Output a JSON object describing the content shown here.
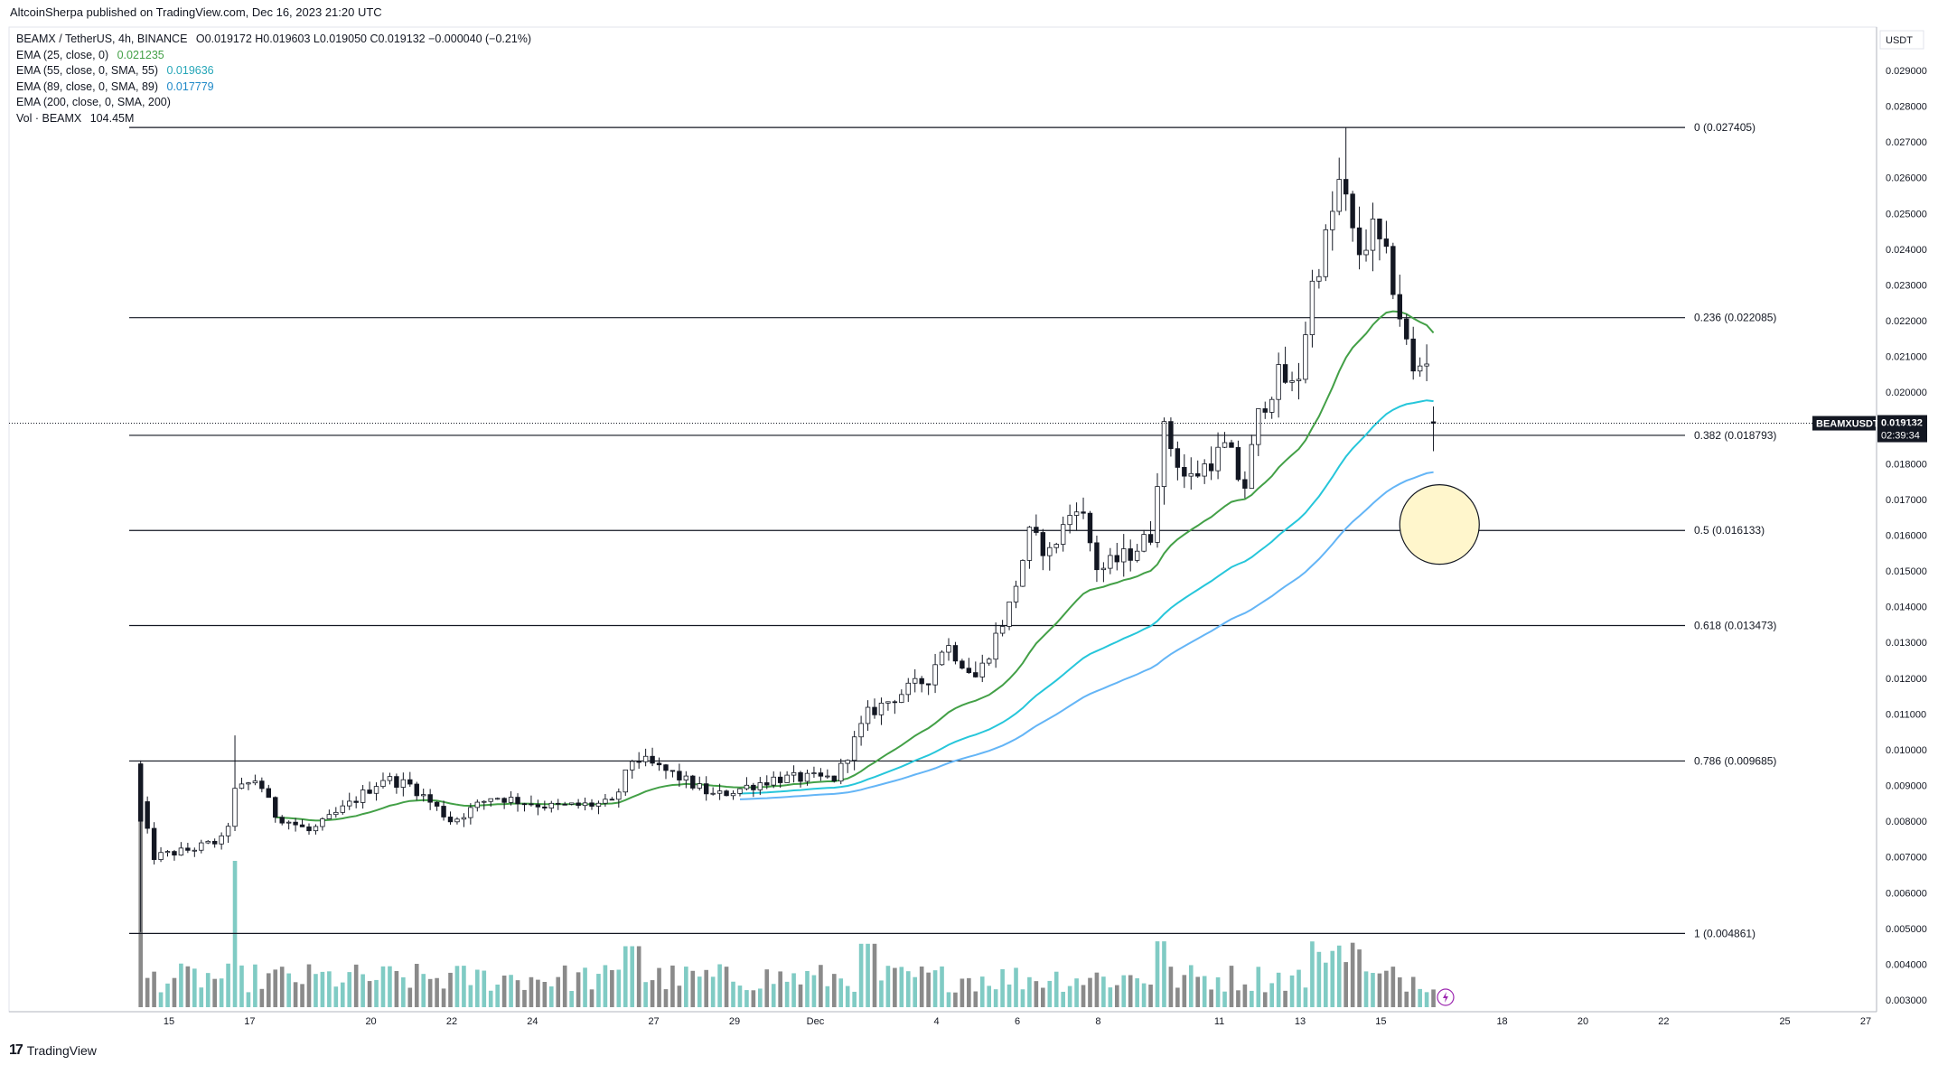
{
  "header": {
    "published_by": "AltcoinSherpa published on TradingView.com, Dec 16, 2023 21:20 UTC"
  },
  "legend": {
    "symbol_line": {
      "label": "BEAMX / TetherUS, 4h, BINANCE",
      "ohlc": "O0.019172  H0.019603  L0.019050  C0.019132  −0.000040 (−0.21%)"
    },
    "indicators": [
      {
        "label": "EMA (25, close, 0)",
        "value": "0.021235",
        "color": "#43a047"
      },
      {
        "label": "EMA (55, close, 0, SMA, 55)",
        "value": "0.019636",
        "color": "#26c6da"
      },
      {
        "label": "EMA (89, close, 0, SMA, 89)",
        "value": "0.017779",
        "color": "#29b6f6"
      },
      {
        "label": "EMA (200, close, 0, SMA, 200)",
        "value": "",
        "color": "#131722"
      },
      {
        "label": "Vol · BEAMX",
        "value": "104.45M",
        "color": "#131722"
      }
    ]
  },
  "footer": {
    "brand": "TradingView",
    "brand_mark": "17"
  },
  "currency": "USDT",
  "price_tag": {
    "symbol": "BEAMXUSDT",
    "price": "0.019132",
    "countdown": "02:39:34"
  },
  "colors": {
    "up_candle": "#ffffff",
    "down_candle": "#131722",
    "wick": "#131722",
    "vol_up": "#80cbc4",
    "vol_down": "#8a8a8a",
    "ema25": "#43a047",
    "ema55": "#26c6da",
    "ema89": "#64b5f6",
    "fib_line": "#131722",
    "circle_fill": "#fff6cc"
  },
  "chart_data": {
    "type": "candlestick",
    "title": "BEAMX / TetherUS, 4h, BINANCE",
    "ylim": [
      0.0027,
      0.0295
    ],
    "y_ticks": [
      "0.029000",
      "0.028000",
      "0.027000",
      "0.026000",
      "0.025000",
      "0.024000",
      "0.023000",
      "0.022000",
      "0.021000",
      "0.020000",
      "0.019000",
      "0.018000",
      "0.017000",
      "0.016000",
      "0.015000",
      "0.014000",
      "0.013000",
      "0.012000",
      "0.011000",
      "0.010000",
      "0.009000",
      "0.008000",
      "0.007000",
      "0.006000",
      "0.005000",
      "0.004000",
      "0.003000"
    ],
    "x_ticks": [
      {
        "label": "15",
        "day": 15
      },
      {
        "label": "17",
        "day": 17
      },
      {
        "label": "20",
        "day": 20
      },
      {
        "label": "22",
        "day": 22
      },
      {
        "label": "24",
        "day": 24
      },
      {
        "label": "27",
        "day": 27
      },
      {
        "label": "29",
        "day": 29
      },
      {
        "label": "Dec",
        "day": 31
      },
      {
        "label": "4",
        "day": 34
      },
      {
        "label": "6",
        "day": 36
      },
      {
        "label": "8",
        "day": 38
      },
      {
        "label": "11",
        "day": 41
      },
      {
        "label": "13",
        "day": 43
      },
      {
        "label": "15",
        "day": 45
      },
      {
        "label": "18",
        "day": 48
      },
      {
        "label": "20",
        "day": 50
      },
      {
        "label": "22",
        "day": 52
      },
      {
        "label": "25",
        "day": 55
      },
      {
        "label": "27",
        "day": 57
      }
    ],
    "fib_levels": [
      {
        "label": "0 (0.027405)",
        "value": 0.027405
      },
      {
        "label": "0.236 (0.022085)",
        "value": 0.022085
      },
      {
        "label": "0.382 (0.018793)",
        "value": 0.018793
      },
      {
        "label": "0.5 (0.016133)",
        "value": 0.016133
      },
      {
        "label": "0.618 (0.013473)",
        "value": 0.013473
      },
      {
        "label": "0.786 (0.009685)",
        "value": 0.009685
      },
      {
        "label": "1 (0.004861)",
        "value": 0.004861
      }
    ],
    "last_price": 0.019132,
    "target_zone": {
      "day": 46.45,
      "price": 0.0163
    },
    "price_keys": [
      {
        "day": 14.3,
        "price": 0.0085
      },
      {
        "day": 14.6,
        "price": 0.007
      },
      {
        "day": 15.5,
        "price": 0.0072
      },
      {
        "day": 16.4,
        "price": 0.0075
      },
      {
        "day": 16.6,
        "price": 0.0088
      },
      {
        "day": 17.2,
        "price": 0.0092
      },
      {
        "day": 17.6,
        "price": 0.0082
      },
      {
        "day": 18.5,
        "price": 0.0077
      },
      {
        "day": 19.5,
        "price": 0.0085
      },
      {
        "day": 20.3,
        "price": 0.0092
      },
      {
        "day": 21.0,
        "price": 0.009
      },
      {
        "day": 22.0,
        "price": 0.008
      },
      {
        "day": 23.0,
        "price": 0.0087
      },
      {
        "day": 24.5,
        "price": 0.0084
      },
      {
        "day": 26.0,
        "price": 0.0085
      },
      {
        "day": 26.5,
        "price": 0.0098
      },
      {
        "day": 27.5,
        "price": 0.0093
      },
      {
        "day": 28.5,
        "price": 0.0087
      },
      {
        "day": 30.0,
        "price": 0.0092
      },
      {
        "day": 31.5,
        "price": 0.0092
      },
      {
        "day": 32.3,
        "price": 0.011
      },
      {
        "day": 33.0,
        "price": 0.0115
      },
      {
        "day": 33.8,
        "price": 0.012
      },
      {
        "day": 34.2,
        "price": 0.013
      },
      {
        "day": 35.0,
        "price": 0.012
      },
      {
        "day": 35.8,
        "price": 0.014
      },
      {
        "day": 36.3,
        "price": 0.016
      },
      {
        "day": 36.8,
        "price": 0.0155
      },
      {
        "day": 37.5,
        "price": 0.017
      },
      {
        "day": 38.0,
        "price": 0.015
      },
      {
        "day": 38.8,
        "price": 0.0155
      },
      {
        "day": 39.3,
        "price": 0.016
      },
      {
        "day": 39.6,
        "price": 0.019
      },
      {
        "day": 40.2,
        "price": 0.0175
      },
      {
        "day": 41.2,
        "price": 0.0185
      },
      {
        "day": 41.6,
        "price": 0.0172
      },
      {
        "day": 42.0,
        "price": 0.0195
      },
      {
        "day": 42.5,
        "price": 0.0205
      },
      {
        "day": 42.9,
        "price": 0.02
      },
      {
        "day": 43.3,
        "price": 0.023
      },
      {
        "day": 43.7,
        "price": 0.0245
      },
      {
        "day": 44.0,
        "price": 0.026
      },
      {
        "day": 44.4,
        "price": 0.0238
      },
      {
        "day": 44.8,
        "price": 0.0245
      },
      {
        "day": 45.2,
        "price": 0.0235
      },
      {
        "day": 45.5,
        "price": 0.022
      },
      {
        "day": 45.8,
        "price": 0.0205
      },
      {
        "day": 46.1,
        "price": 0.021
      },
      {
        "day": 46.3,
        "price": 0.0208
      },
      {
        "day": 46.35,
        "price": 0.0191
      }
    ],
    "volume_spikes": [
      {
        "day": 14.3,
        "rel": 1.0
      },
      {
        "day": 16.6,
        "rel": 0.6
      }
    ]
  }
}
